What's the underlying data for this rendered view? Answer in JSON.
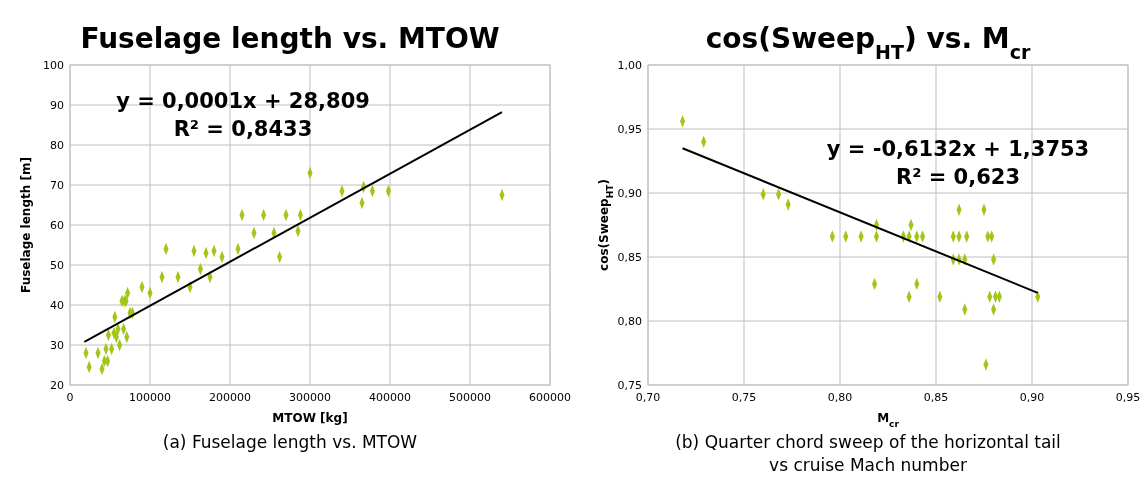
{
  "chart_data": [
    {
      "type": "scatter",
      "title": "Fuselage length vs. MTOW",
      "xlabel": "MTOW [kg]",
      "ylabel": "Fuselage length [m]",
      "xlim": [
        0,
        600000
      ],
      "ylim": [
        20,
        100
      ],
      "xticks": [
        0,
        100000,
        200000,
        300000,
        400000,
        500000,
        600000
      ],
      "yticks": [
        20,
        30,
        40,
        50,
        60,
        70,
        80,
        90,
        100
      ],
      "grid": true,
      "marker": "diamond",
      "annotations": [
        "y = 0,0001x + 28,809",
        "R² = 0,8433",
        "(a) Fuselage length vs. MTOW"
      ],
      "series": [
        {
          "type": "scatter",
          "color": "#a2c617",
          "x": [
            20000,
            24000,
            35000,
            40000,
            43000,
            45000,
            47000,
            48000,
            52000,
            55000,
            56000,
            58000,
            60000,
            62000,
            65000,
            67000,
            68000,
            70000,
            71000,
            72000,
            75000,
            78000,
            90000,
            100000,
            120000,
            115000,
            135000,
            150000,
            155000,
            163000,
            170000,
            175000,
            180000,
            190000,
            210000,
            215000,
            230000,
            242000,
            255000,
            262000,
            270000,
            285000,
            288000,
            300000,
            340000,
            365000,
            367000,
            378000,
            398000,
            540000
          ],
          "values": [
            28,
            24.5,
            28,
            24,
            26,
            29,
            26,
            32.5,
            29,
            33,
            37,
            32,
            34,
            30,
            41,
            34,
            41,
            41,
            32,
            43,
            38,
            38,
            44.5,
            43,
            54,
            47,
            47,
            44.5,
            53.5,
            49,
            53,
            47,
            53.5,
            52,
            54,
            62.5,
            58,
            62.5,
            58,
            52,
            62.5,
            58.5,
            62.5,
            73,
            68.5,
            65.5,
            69.5,
            68.5,
            68.5,
            67.5
          ]
        },
        {
          "type": "line",
          "color": "#000000",
          "marker": "none",
          "x": [
            18000,
            540000
          ],
          "values": [
            30.8,
            88.2
          ]
        }
      ]
    },
    {
      "type": "scatter",
      "title": "cos(Sweep$_{HT}$) vs. M$_{cr}$",
      "xlabel": "M$_{cr}$",
      "ylabel": "cos(Sweep$_{HT}$)",
      "xlim": [
        0.7,
        0.95
      ],
      "ylim": [
        0.75,
        1
      ],
      "xticks": [
        {
          "value": 0.7,
          "label": "0,70"
        },
        {
          "value": 0.75,
          "label": "0,75"
        },
        {
          "value": 0.8,
          "label": "0,80"
        },
        {
          "value": 0.85,
          "label": "0,85"
        },
        {
          "value": 0.9,
          "label": "0,90"
        },
        {
          "value": 0.95,
          "label": "0,95"
        }
      ],
      "yticks": [
        {
          "value": 0.75,
          "label": "0,75"
        },
        {
          "value": 0.8,
          "label": "0,80"
        },
        {
          "value": 0.85,
          "label": "0,85"
        },
        {
          "value": 0.9,
          "label": "0,90"
        },
        {
          "value": 0.95,
          "label": "0,95"
        },
        {
          "value": 1,
          "label": "1,00"
        }
      ],
      "grid": true,
      "marker": "diamond",
      "annotations": [
        "y = -0,6132x + 1,3753",
        "R² = 0,623",
        "(b) Quarter chord sweep of the horizontal tail vs cruise Mach number"
      ],
      "series": [
        {
          "type": "scatter",
          "color": "#a2c617",
          "x": [
            0.718,
            0.729,
            0.76,
            0.768,
            0.773,
            0.796,
            0.803,
            0.811,
            0.819,
            0.819,
            0.818,
            0.833,
            0.836,
            0.837,
            0.84,
            0.843,
            0.84,
            0.836,
            0.852,
            0.859,
            0.859,
            0.862,
            0.862,
            0.862,
            0.865,
            0.866,
            0.865,
            0.875,
            0.877,
            0.878,
            0.879,
            0.88,
            0.88,
            0.881,
            0.883,
            0.876,
            0.903
          ],
          "values": [
            0.956,
            0.94,
            0.899,
            0.899,
            0.891,
            0.866,
            0.866,
            0.866,
            0.866,
            0.875,
            0.829,
            0.866,
            0.866,
            0.875,
            0.866,
            0.866,
            0.829,
            0.819,
            0.819,
            0.866,
            0.848,
            0.887,
            0.866,
            0.848,
            0.848,
            0.866,
            0.809,
            0.887,
            0.866,
            0.819,
            0.866,
            0.848,
            0.809,
            0.819,
            0.819,
            0.766,
            0.819
          ]
        },
        {
          "type": "line",
          "color": "#000000",
          "marker": "none",
          "x": [
            0.718,
            0.903
          ],
          "values": [
            0.935,
            0.822
          ]
        }
      ]
    }
  ]
}
